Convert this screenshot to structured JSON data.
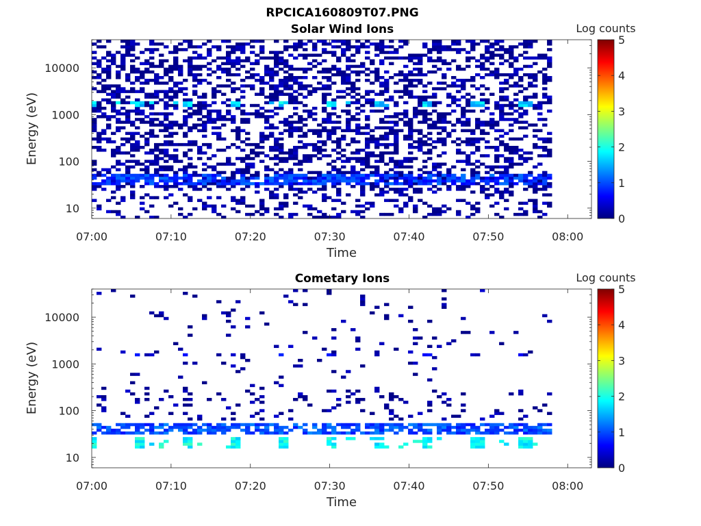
{
  "figure": {
    "title": "RPCICA160809T07.PNG"
  },
  "colormap": {
    "name": "jet",
    "stops": [
      "#00007f",
      "#0000ff",
      "#007fff",
      "#00ffff",
      "#7fff7f",
      "#ffff00",
      "#ff7f00",
      "#ff0000",
      "#7f0000"
    ]
  },
  "chart_data": [
    {
      "type": "heatmap",
      "title": "Solar Wind Ions",
      "xlabel": "Time",
      "ylabel": "Energy (eV)",
      "xticks": [
        "07:00",
        "07:10",
        "07:20",
        "07:30",
        "07:40",
        "07:50",
        "08:00"
      ],
      "xlim": [
        "07:00",
        "08:03"
      ],
      "data_end": "07:58",
      "yscale": "log",
      "ylim": [
        6,
        40000
      ],
      "yticks": [
        10,
        100,
        1000,
        10000
      ],
      "ytick_labels": [
        "10",
        "100",
        "1000",
        "10000"
      ],
      "colorbar": {
        "label": "Log counts",
        "range": [
          0,
          5
        ],
        "ticks": [
          "0",
          "1",
          "2",
          "3",
          "4",
          "5"
        ]
      },
      "features": [
        {
          "description": "band",
          "energy_eV": [
            30,
            55
          ],
          "log_counts": 0.9
        },
        {
          "description": "band",
          "energy_eV": [
            1500,
            1900
          ],
          "log_counts": 1.7
        },
        {
          "description": "scattered",
          "energy_eV": [
            6,
            40000
          ],
          "log_counts": 0.1
        }
      ]
    },
    {
      "type": "heatmap",
      "title": "Cometary Ions",
      "xlabel": "Time",
      "ylabel": "Energy (eV)",
      "xticks": [
        "07:00",
        "07:10",
        "07:20",
        "07:30",
        "07:40",
        "07:50",
        "08:00"
      ],
      "xlim": [
        "07:00",
        "08:03"
      ],
      "data_end": "07:58",
      "yscale": "log",
      "ylim": [
        6,
        40000
      ],
      "yticks": [
        10,
        100,
        1000,
        10000
      ],
      "ytick_labels": [
        "10",
        "100",
        "1000",
        "10000"
      ],
      "colorbar": {
        "label": "Log counts",
        "range": [
          0,
          5
        ],
        "ticks": [
          "0",
          "1",
          "2",
          "3",
          "4",
          "5"
        ]
      },
      "features": [
        {
          "description": "band",
          "energy_eV": [
            30,
            55
          ],
          "log_counts": 1.0
        },
        {
          "description": "band",
          "energy_eV": [
            15,
            28
          ],
          "log_counts": 1.9
        },
        {
          "description": "band",
          "energy_eV": [
            1500,
            1800
          ],
          "log_counts": 0.5
        },
        {
          "description": "sparse",
          "energy_eV": [
            60,
            40000
          ],
          "log_counts": 0.1
        }
      ]
    }
  ]
}
